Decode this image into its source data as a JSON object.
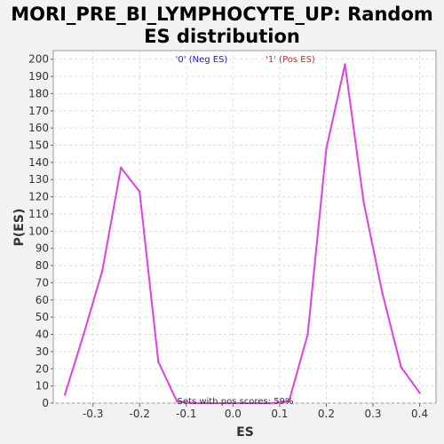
{
  "chart_data": {
    "type": "line",
    "title": "MORI_PRE_BI_LYMPHOCYTE_UP: Random ES distribution",
    "xlabel": "ES",
    "ylabel": "P(ES)",
    "xlim": [
      -0.385,
      0.435
    ],
    "ylim": [
      0,
      205
    ],
    "xticks": [
      -0.3,
      -0.2,
      -0.1,
      0.0,
      0.1,
      0.2,
      0.3,
      0.4
    ],
    "xtick_labels": [
      "-0.3",
      "-0.2",
      "-0.1",
      "0.0",
      "0.1",
      "0.2",
      "0.3",
      "0.4"
    ],
    "yticks": [
      0,
      10,
      20,
      30,
      40,
      50,
      60,
      70,
      80,
      90,
      100,
      110,
      120,
      130,
      140,
      150,
      160,
      170,
      180,
      190,
      200
    ],
    "ytick_labels": [
      "0",
      "10",
      "20",
      "30",
      "40",
      "50",
      "60",
      "70",
      "80",
      "90",
      "100",
      "110",
      "120",
      "130",
      "140",
      "150",
      "160",
      "170",
      "180",
      "190",
      "200"
    ],
    "grid": true,
    "series": [
      {
        "name": "Random ES",
        "color": "#e040e0",
        "x": [
          -0.36,
          -0.32,
          -0.28,
          -0.24,
          -0.2,
          -0.16,
          -0.12,
          -0.08,
          -0.04,
          0.0,
          0.04,
          0.08,
          0.12,
          0.16,
          0.2,
          0.24,
          0.28,
          0.32,
          0.36,
          0.4
        ],
        "y": [
          5,
          40,
          77,
          137,
          123,
          24,
          1,
          0,
          0,
          0,
          0,
          0,
          1,
          40,
          148,
          197,
          117,
          64,
          21,
          6
        ]
      }
    ],
    "legend": [
      {
        "label": "'0' (Neg ES)",
        "color": "#2020cc"
      },
      {
        "label": "'1' (Pos ES)",
        "color": "#e02020"
      }
    ],
    "annotation": "Sets with pos scores: 59%"
  }
}
